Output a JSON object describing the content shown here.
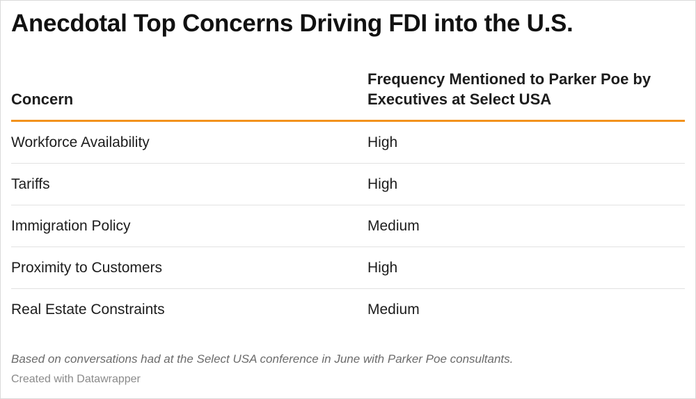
{
  "chart_data": {
    "type": "table",
    "title": "Anecdotal Top Concerns Driving FDI into the U.S.",
    "columns": [
      "Concern",
      "Frequency Mentioned to Parker Poe by Executives at Select USA"
    ],
    "rows": [
      {
        "concern": "Workforce Availability",
        "frequency": "High"
      },
      {
        "concern": "Tariffs",
        "frequency": "High"
      },
      {
        "concern": "Immigration Policy",
        "frequency": "Medium"
      },
      {
        "concern": "Proximity to Customers",
        "frequency": "High"
      },
      {
        "concern": "Real Estate Constraints",
        "frequency": "Medium"
      }
    ],
    "notes": "Based on conversations had at the Select USA conference in June with Parker Poe consultants.",
    "credit": "Created with Datawrapper"
  },
  "colors": {
    "header_rule": "#f2921d",
    "row_divider": "#e2e2e2",
    "text": "#1d1d1d",
    "notes": "#6b6b6b"
  }
}
